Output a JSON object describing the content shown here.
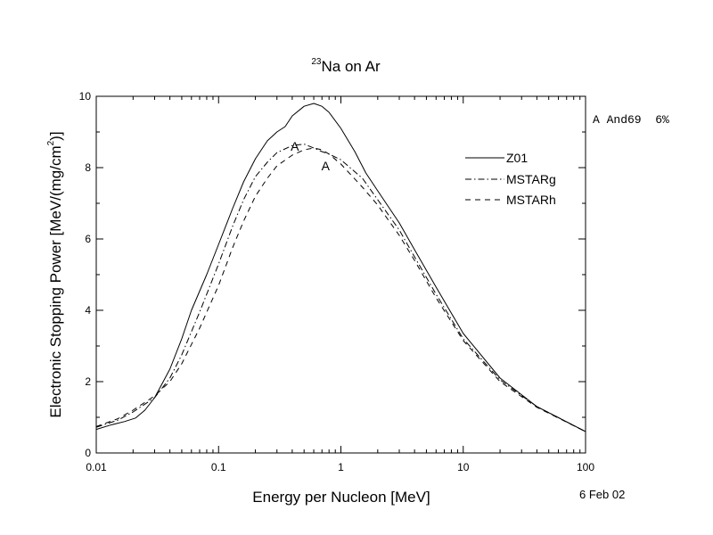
{
  "chart_data": {
    "type": "line",
    "title_sup": "23",
    "title_main": "Na on Ar",
    "xlabel": "Energy per Nucleon [MeV]",
    "ylabel_pre": "Electronic Stopping Power [MeV/(mg/cm",
    "ylabel_sup": "2",
    "ylabel_post": ")]",
    "x_scale": "log",
    "xlim": [
      0.01,
      100
    ],
    "ylim": [
      0,
      10
    ],
    "x_ticks": [
      0.01,
      0.1,
      1,
      10,
      100
    ],
    "x_tick_labels": [
      "0.01",
      "0.1",
      "1",
      "10",
      "100"
    ],
    "y_ticks": [
      0,
      2,
      4,
      6,
      8,
      10
    ],
    "y_tick_labels": [
      "0",
      "2",
      "4",
      "6",
      "8",
      "10"
    ],
    "grid": false,
    "legend_position": "top-right",
    "series": [
      {
        "name": "Z01",
        "style": "solid",
        "x": [
          0.01,
          0.013,
          0.017,
          0.021,
          0.025,
          0.03,
          0.04,
          0.05,
          0.06,
          0.08,
          0.1,
          0.13,
          0.16,
          0.2,
          0.25,
          0.3,
          0.35,
          0.4,
          0.5,
          0.6,
          0.7,
          0.8,
          1.0,
          1.3,
          1.6,
          2.0,
          3.0,
          4.0,
          6.0,
          10,
          20,
          40,
          100
        ],
        "y": [
          0.66,
          0.78,
          0.88,
          0.98,
          1.2,
          1.55,
          2.35,
          3.2,
          4.0,
          5.0,
          5.85,
          6.85,
          7.6,
          8.25,
          8.75,
          9.0,
          9.15,
          9.45,
          9.72,
          9.8,
          9.72,
          9.55,
          9.1,
          8.45,
          7.85,
          7.35,
          6.45,
          5.7,
          4.65,
          3.35,
          2.1,
          1.3,
          0.6
        ]
      },
      {
        "name": "MSTARg",
        "style": "dashdot",
        "x": [
          0.01,
          0.015,
          0.02,
          0.03,
          0.04,
          0.05,
          0.07,
          0.1,
          0.13,
          0.16,
          0.2,
          0.25,
          0.3,
          0.4,
          0.5,
          0.6,
          0.7,
          0.8,
          1.0,
          1.5,
          2.0,
          3.0,
          4.0,
          6.0,
          10,
          20,
          40,
          100
        ],
        "y": [
          0.72,
          0.92,
          1.15,
          1.55,
          2.1,
          2.75,
          3.95,
          5.3,
          6.35,
          7.1,
          7.75,
          8.15,
          8.42,
          8.62,
          8.66,
          8.55,
          8.45,
          8.38,
          8.22,
          7.7,
          7.1,
          6.25,
          5.5,
          4.45,
          3.2,
          2.05,
          1.3,
          0.6
        ]
      },
      {
        "name": "MSTARh",
        "style": "dashed",
        "x": [
          0.01,
          0.015,
          0.02,
          0.03,
          0.04,
          0.05,
          0.07,
          0.1,
          0.13,
          0.16,
          0.2,
          0.25,
          0.3,
          0.4,
          0.5,
          0.6,
          0.7,
          0.8,
          1.0,
          1.5,
          2.0,
          3.0,
          4.0,
          6.0,
          10,
          20,
          40,
          100
        ],
        "y": [
          0.74,
          0.96,
          1.2,
          1.6,
          2.0,
          2.5,
          3.5,
          4.7,
          5.75,
          6.5,
          7.2,
          7.7,
          8.05,
          8.35,
          8.5,
          8.55,
          8.5,
          8.38,
          8.1,
          7.45,
          6.95,
          6.1,
          5.4,
          4.35,
          3.15,
          2.0,
          1.28,
          0.6
        ]
      }
    ],
    "data_point_markers": [
      {
        "label": "A",
        "x": 0.42,
        "y": 8.6
      },
      {
        "label": "A",
        "x": 0.75,
        "y": 8.05
      }
    ],
    "reference_note": "A And69  6%",
    "date_stamp": "6 Feb 02"
  }
}
